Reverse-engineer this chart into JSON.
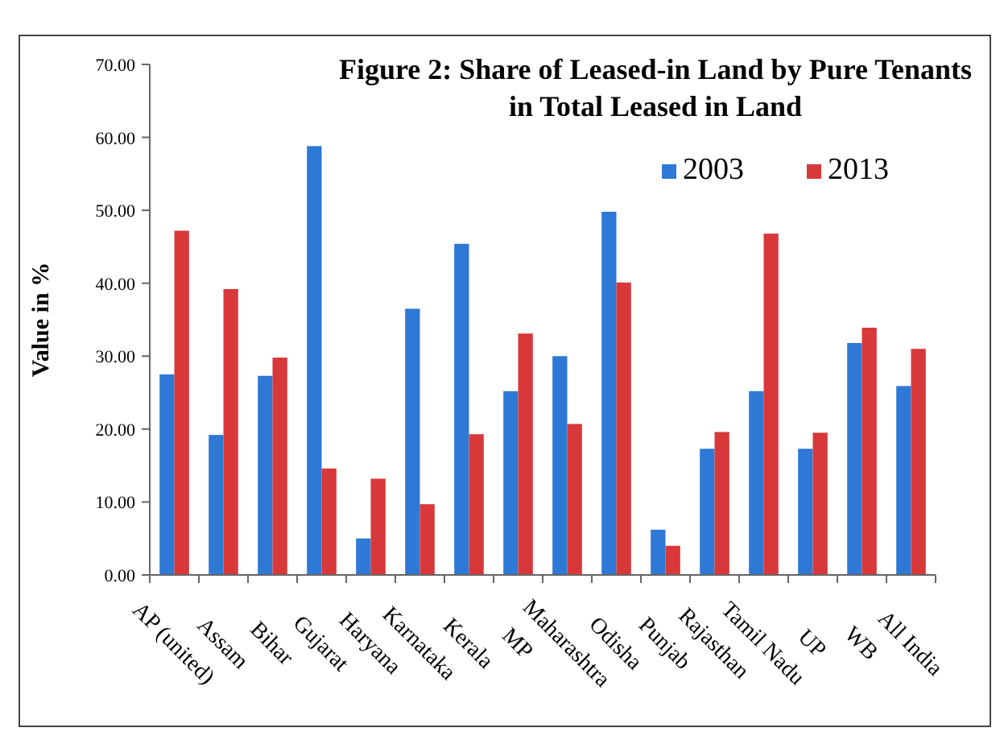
{
  "chart_data": {
    "type": "bar",
    "title": "Figure 2: Share of Leased-in Land by Pure Tenants in Total Leased in Land",
    "ylabel": "Value in %",
    "categories": [
      "AP (united)",
      "Assam",
      "Bihar",
      "Gujarat",
      "Haryana",
      "Karnataka",
      "Kerala",
      "MP",
      "Maharashtra",
      "Odisha",
      "Punjab",
      "Rajasthan",
      "Tamil Nadu",
      "UP",
      "WB",
      "All India"
    ],
    "series": [
      {
        "name": "2003",
        "color": "#2e78d6",
        "values": [
          27.5,
          19.2,
          27.3,
          58.8,
          5.0,
          36.5,
          45.4,
          25.2,
          30.0,
          49.8,
          6.2,
          17.3,
          25.2,
          17.3,
          31.8,
          25.9
        ]
      },
      {
        "name": "2013",
        "color": "#d8383a",
        "values": [
          47.2,
          39.2,
          29.8,
          14.6,
          13.2,
          9.7,
          19.3,
          33.1,
          20.7,
          40.1,
          4.0,
          19.6,
          46.8,
          19.5,
          33.9,
          31.0
        ]
      }
    ],
    "ylim": [
      0,
      70
    ],
    "yticks": [
      {
        "value": 0,
        "label": "0.00"
      },
      {
        "value": 10,
        "label": "10.00"
      },
      {
        "value": 20,
        "label": "20.00"
      },
      {
        "value": 30,
        "label": "30.00"
      },
      {
        "value": 40,
        "label": "40.00"
      },
      {
        "value": 50,
        "label": "50.00"
      },
      {
        "value": 60,
        "label": "60.00"
      },
      {
        "value": 70,
        "label": "70.00"
      }
    ],
    "grid": false,
    "legend": "top right"
  }
}
